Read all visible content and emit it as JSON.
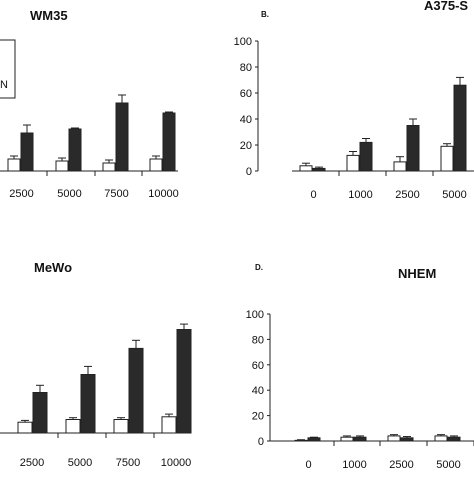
{
  "chart_data": [
    {
      "type": "bar",
      "panel_label": "",
      "title": "WM35",
      "legend_fragment": "N",
      "categories": [
        "2500",
        "5000",
        "7500",
        "10000"
      ],
      "series": [
        {
          "values": [
            12,
            10,
            8,
            12
          ],
          "errors": [
            3,
            3,
            3,
            3
          ],
          "color": "#ffffff"
        },
        {
          "values": [
            38,
            42,
            68,
            58
          ],
          "errors": [
            8,
            1,
            8,
            1
          ],
          "color": "#2a2a2a"
        }
      ],
      "grid": false
    },
    {
      "type": "bar",
      "panel_label": "B.",
      "title": "A375-S",
      "categories": [
        "0",
        "1000",
        "2500",
        "5000"
      ],
      "ylim": [
        0,
        100
      ],
      "yticks": [
        "0",
        "20",
        "40",
        "60",
        "80",
        "100"
      ],
      "series": [
        {
          "values": [
            4,
            12,
            7,
            19
          ],
          "errors": [
            2,
            3,
            4,
            2
          ],
          "color": "#ffffff"
        },
        {
          "values": [
            2,
            22,
            35,
            66
          ],
          "errors": [
            1,
            3,
            5,
            6
          ],
          "color": "#2a2a2a"
        }
      ],
      "grid": false
    },
    {
      "type": "bar",
      "panel_label": "",
      "title": "MeWo",
      "categories": [
        "2500",
        "5000",
        "7500",
        "10000"
      ],
      "series": [
        {
          "values": [
            12,
            15,
            15,
            18
          ],
          "errors": [
            2,
            2,
            2,
            3
          ],
          "color": "#ffffff"
        },
        {
          "values": [
            45,
            65,
            94,
            115
          ],
          "errors": [
            8,
            9,
            9,
            6
          ],
          "color": "#2a2a2a"
        }
      ],
      "grid": false
    },
    {
      "type": "bar",
      "panel_label": "D.",
      "title": "NHEM",
      "categories": [
        "0",
        "1000",
        "2500",
        "5000"
      ],
      "ylim": [
        0,
        100
      ],
      "yticks": [
        "0",
        "20",
        "40",
        "60",
        "80",
        "100"
      ],
      "series": [
        {
          "values": [
            0.5,
            3,
            4,
            4
          ],
          "errors": [
            0.5,
            1,
            1,
            1
          ],
          "color": "#ffffff"
        },
        {
          "values": [
            2.5,
            3,
            2.5,
            3
          ],
          "errors": [
            0.5,
            1,
            1,
            1
          ],
          "color": "#2a2a2a"
        }
      ],
      "grid": false
    }
  ]
}
